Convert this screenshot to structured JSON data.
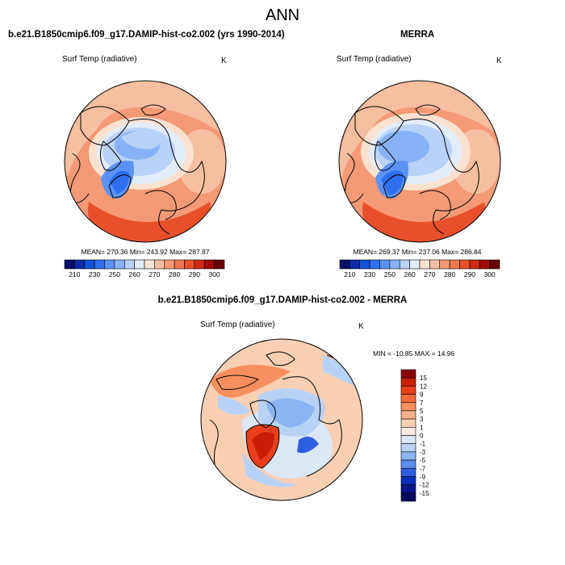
{
  "figure": {
    "title": "ANN",
    "left_panel_title": "b.e21.B1850cmip6.f09_g17.DAMIP-hist-co2.002 (yrs 1990-2014)",
    "right_panel_title": "MERRA",
    "diff_panel_title": "b.e21.B1850cmip6.f09_g17.DAMIP-hist-co2.002 - MERRA",
    "variable": "Surf Temp (radiative)",
    "units": "K"
  },
  "chart_data": [
    {
      "type": "heatmap",
      "projection": "polar stereographic (north pole)",
      "panel": "model",
      "stats_text": "MEAN= 270.36  Min= 243.92  Max= 287.87",
      "stats": {
        "mean": 270.36,
        "min": 243.92,
        "max": 287.87
      },
      "colorbar": {
        "orientation": "horizontal",
        "tick_labels": [
          "210",
          "230",
          "250",
          "260",
          "270",
          "280",
          "290",
          "300"
        ],
        "colors": [
          "#08106b",
          "#0b2ca8",
          "#1450d8",
          "#2e6ef0",
          "#5a92f5",
          "#88b2f7",
          "#b9d2f7",
          "#e3edf9",
          "#fbe2d0",
          "#f7bfa2",
          "#f49a76",
          "#f07650",
          "#e8502b",
          "#d02a10",
          "#a00c05",
          "#6b0000"
        ]
      }
    },
    {
      "type": "heatmap",
      "projection": "polar stereographic (north pole)",
      "panel": "obs",
      "stats_text": "MEAN= 269.37  Min= 237.06  Max= 286.84",
      "stats": {
        "mean": 269.37,
        "min": 237.06,
        "max": 286.84
      },
      "colorbar": {
        "orientation": "horizontal",
        "tick_labels": [
          "210",
          "230",
          "250",
          "260",
          "270",
          "280",
          "290",
          "300"
        ],
        "colors": [
          "#08106b",
          "#0b2ca8",
          "#1450d8",
          "#2e6ef0",
          "#5a92f5",
          "#88b2f7",
          "#b9d2f7",
          "#e3edf9",
          "#fbe2d0",
          "#f7bfa2",
          "#f49a76",
          "#f07650",
          "#e8502b",
          "#d02a10",
          "#a00c05",
          "#6b0000"
        ]
      }
    },
    {
      "type": "heatmap",
      "projection": "polar stereographic (north pole)",
      "panel": "difference",
      "stats_text": "MIN = -10.85 MAX =  14.96",
      "stats": {
        "min": -10.85,
        "max": 14.96
      },
      "colorbar": {
        "orientation": "vertical",
        "tick_labels": [
          "15",
          "12",
          "9",
          "7",
          "5",
          "3",
          "1",
          "0",
          "-1",
          "-3",
          "-5",
          "-7",
          "-9",
          "-12",
          "-15"
        ],
        "colors": [
          "#8a0000",
          "#c81e05",
          "#e8401a",
          "#f26a3c",
          "#f6905f",
          "#f7b18a",
          "#f9cfb3",
          "#fbeae0",
          "#dbe8f8",
          "#b8d2f6",
          "#8cb3f3",
          "#5e8cee",
          "#2e5ee0",
          "#0a30b8",
          "#06168a",
          "#04085e"
        ]
      }
    }
  ]
}
